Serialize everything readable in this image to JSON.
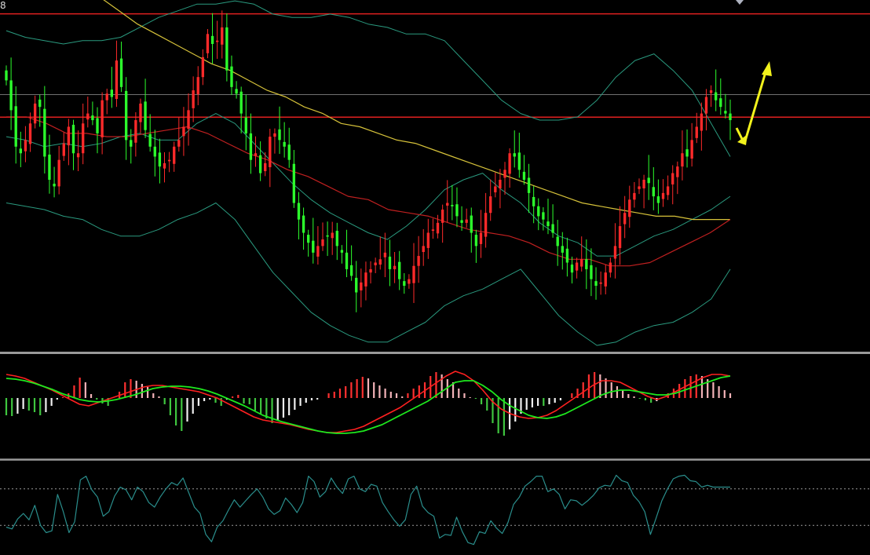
{
  "corner_label": "8",
  "colors": {
    "background": "#000000",
    "candle_up": "#ff2a2a",
    "candle_down": "#2cff2c",
    "bollinger": "#2a9a7f",
    "ma_long": "#d6c23a",
    "ma_medium": "#c02020",
    "resistance_lines": "#e0201f",
    "current_price_line": "#707070",
    "annotation_arrows": "#f2f21c",
    "macd_dif": "#ff2020",
    "macd_dea": "#1ee81e",
    "macd_hist_pos": "#ff3030",
    "macd_hist_pos_fading": "#f3b3b8",
    "macd_hist_neg": "#3fc63f",
    "macd_hist_neg_fading": "#f0f0f0",
    "rsi_line": "#2a8e8c",
    "rsi_guides": "#9a9a9a",
    "panel_separator": "#9a9a9a"
  },
  "chart_data": [
    {
      "type": "candlestick",
      "panel": "price",
      "title": "",
      "xlabel": "",
      "ylabel": "",
      "axis_labels_visible": false,
      "ylim": [
        0,
        100
      ],
      "grid": false,
      "legend": "none",
      "closes_approx": [
        80,
        71,
        60,
        58,
        62,
        67,
        73,
        72,
        57,
        50,
        48,
        56,
        61,
        66,
        58,
        58,
        67,
        70,
        68,
        64,
        74,
        76,
        75,
        86,
        78,
        62,
        60,
        68,
        73,
        65,
        60,
        57,
        54,
        55,
        56,
        60,
        62,
        66,
        71,
        77,
        81,
        87,
        94,
        91,
        92,
        96,
        83,
        78,
        76,
        70,
        64,
        56,
        58,
        52,
        55,
        63,
        64,
        62,
        60,
        56,
        43,
        38,
        34,
        31,
        28,
        30,
        32,
        33,
        34,
        30,
        28,
        23,
        21,
        16,
        19,
        22,
        23,
        25,
        26,
        28,
        23,
        24,
        20,
        18,
        20,
        24,
        27,
        30,
        34,
        35,
        37,
        41,
        43,
        42,
        39,
        37,
        38,
        34,
        30,
        34,
        40,
        45,
        48,
        50,
        53,
        58,
        57,
        53,
        50,
        46,
        42,
        39,
        38,
        36,
        34,
        30,
        28,
        25,
        22,
        25,
        26,
        23,
        20,
        18,
        19,
        22,
        25,
        30,
        36,
        40,
        44,
        46,
        48,
        50,
        49,
        45,
        43,
        46,
        48,
        52,
        54,
        58,
        57,
        62,
        66,
        70,
        75,
        77,
        74,
        72,
        70,
        68
      ],
      "bollinger_upper": [
        95,
        93,
        92,
        91,
        92,
        92,
        93,
        96,
        99,
        101,
        103,
        103,
        104,
        103,
        100,
        99,
        99,
        100,
        99,
        97,
        96,
        94,
        94,
        92,
        86,
        80,
        74,
        70,
        68,
        68,
        69,
        74,
        81,
        86,
        88,
        83,
        77,
        67,
        57
      ],
      "bollinger_middle": [
        63,
        62,
        60,
        61,
        60,
        61,
        63,
        64,
        62,
        62,
        67,
        70,
        67,
        61,
        55,
        49,
        44,
        40,
        37,
        34,
        32,
        36,
        41,
        47,
        50,
        52,
        47,
        43,
        37,
        33,
        31,
        27,
        27,
        30,
        33,
        35,
        38,
        41,
        45
      ],
      "bollinger_lower": [
        43,
        42,
        41,
        39,
        38,
        35,
        33,
        33,
        35,
        38,
        40,
        43,
        38,
        30,
        22,
        16,
        10,
        6,
        3,
        1,
        1,
        4,
        7,
        12,
        15,
        17,
        20,
        23,
        16,
        9,
        4,
        0,
        1,
        4,
        6,
        7,
        10,
        14,
        23
      ],
      "ma_long": [
        105,
        101,
        97,
        94,
        91,
        88,
        85,
        83,
        80,
        77,
        75,
        72,
        70,
        67,
        66,
        64,
        62,
        61,
        59,
        57,
        55,
        53,
        51,
        49,
        47,
        45,
        43,
        42,
        41,
        40,
        39,
        39,
        38,
        38,
        38
      ],
      "ma_medium": [
        69,
        69,
        67,
        64,
        64,
        63,
        63,
        64,
        65,
        66,
        64,
        61,
        58,
        56,
        53,
        51,
        48,
        45,
        44,
        41,
        40,
        39,
        37,
        35,
        34,
        33,
        31,
        28,
        26,
        26,
        24,
        24,
        25,
        28,
        31,
        34,
        38
      ],
      "resistance_levels": [
        100.1,
        68.9
      ],
      "current_price_level": 75.7,
      "annotations": [
        "arrow-down",
        "arrow-up"
      ]
    },
    {
      "type": "macd",
      "panel": "macd",
      "title": "",
      "xlabel": "",
      "ylabel": "",
      "axis_labels_visible": false,
      "ylim": [
        -55,
        40
      ],
      "grid": false,
      "legend": "none",
      "histogram": [
        -22,
        -23,
        -20,
        -14,
        -16,
        -18,
        -22,
        -18,
        -10,
        -2,
        1,
        6,
        16,
        26,
        20,
        5,
        -2,
        -7,
        -10,
        0,
        8,
        20,
        24,
        22,
        18,
        14,
        6,
        2,
        -8,
        -22,
        -35,
        -42,
        -30,
        -20,
        -10,
        -4,
        -2,
        -6,
        -10,
        -2,
        2,
        4,
        -7,
        -8,
        -16,
        -20,
        -26,
        -32,
        -28,
        -25,
        -22,
        -15,
        -10,
        -6,
        -3,
        -2,
        0,
        6,
        8,
        12,
        15,
        20,
        24,
        27,
        25,
        20,
        16,
        12,
        8,
        6,
        2,
        6,
        12,
        16,
        20,
        28,
        33,
        30,
        24,
        20,
        12,
        6,
        1,
        -1,
        -8,
        -16,
        -32,
        -45,
        -48,
        -40,
        -30,
        -20,
        -15,
        -12,
        -10,
        -10,
        -8,
        -6,
        -3,
        0,
        6,
        12,
        20,
        30,
        33,
        30,
        25,
        20,
        15,
        10,
        5,
        2,
        -1,
        -3,
        -6,
        -4,
        0,
        6,
        12,
        18,
        24,
        28,
        30,
        28,
        24,
        20,
        15,
        10,
        6
      ],
      "dif": [
        30,
        28,
        25,
        20,
        15,
        10,
        4,
        -2,
        -8,
        -10,
        -6,
        -2,
        2,
        6,
        10,
        14,
        16,
        16,
        14,
        12,
        10,
        8,
        4,
        0,
        -6,
        -12,
        -18,
        -24,
        -28,
        -30,
        -32,
        -34,
        -37,
        -40,
        -42,
        -44,
        -44,
        -42,
        -40,
        -36,
        -30,
        -24,
        -18,
        -12,
        -4,
        4,
        12,
        20,
        28,
        34,
        30,
        22,
        10,
        -4,
        -14,
        -20,
        -24,
        -26,
        -25,
        -22,
        -16,
        -8,
        0,
        8,
        16,
        22,
        22,
        20,
        14,
        8,
        2,
        -2,
        2,
        8,
        14,
        20,
        26,
        30,
        30,
        28
      ],
      "dea": [
        25,
        24,
        22,
        19,
        15,
        11,
        6,
        2,
        -2,
        -4,
        -5,
        -4,
        -2,
        1,
        4,
        8,
        12,
        14,
        15,
        15,
        14,
        12,
        9,
        5,
        0,
        -5,
        -10,
        -16,
        -22,
        -26,
        -30,
        -33,
        -36,
        -39,
        -42,
        -44,
        -45,
        -45,
        -44,
        -42,
        -38,
        -34,
        -28,
        -22,
        -16,
        -10,
        -4,
        4,
        12,
        20,
        22,
        22,
        16,
        8,
        -2,
        -10,
        -16,
        -22,
        -25,
        -26,
        -24,
        -20,
        -14,
        -8,
        -2,
        4,
        8,
        10,
        10,
        8,
        6,
        4,
        4,
        6,
        10,
        14,
        18,
        22,
        26,
        28
      ]
    },
    {
      "type": "line",
      "panel": "rsi",
      "title": "",
      "xlabel": "",
      "ylabel": "",
      "axis_labels_visible": false,
      "ylim": [
        0,
        100
      ],
      "grid": false,
      "legend": "none",
      "guide_levels": [
        70,
        30
      ],
      "values": [
        28,
        26,
        37,
        43,
        36,
        52,
        30,
        22,
        24,
        64,
        45,
        22,
        34,
        80,
        84,
        69,
        61,
        40,
        45,
        62,
        72,
        69,
        58,
        72,
        67,
        55,
        50,
        61,
        70,
        77,
        74,
        82,
        66,
        50,
        43,
        20,
        12,
        28,
        35,
        47,
        58,
        50,
        57,
        64,
        70,
        61,
        48,
        42,
        46,
        60,
        53,
        44,
        55,
        84,
        78,
        61,
        67,
        82,
        72,
        65,
        81,
        84,
        70,
        67,
        75,
        73,
        55,
        45,
        36,
        29,
        36,
        64,
        73,
        51,
        44,
        40,
        16,
        20,
        19,
        39,
        23,
        11,
        9,
        23,
        21,
        35,
        27,
        21,
        33,
        53,
        61,
        73,
        78,
        84,
        84,
        67,
        70,
        64,
        48,
        58,
        57,
        52,
        57,
        63,
        71,
        74,
        73,
        85,
        79,
        77,
        63,
        56,
        45,
        20,
        38,
        57,
        70,
        81,
        84,
        85,
        79,
        78,
        72,
        74,
        72,
        72,
        72,
        72
      ]
    }
  ]
}
